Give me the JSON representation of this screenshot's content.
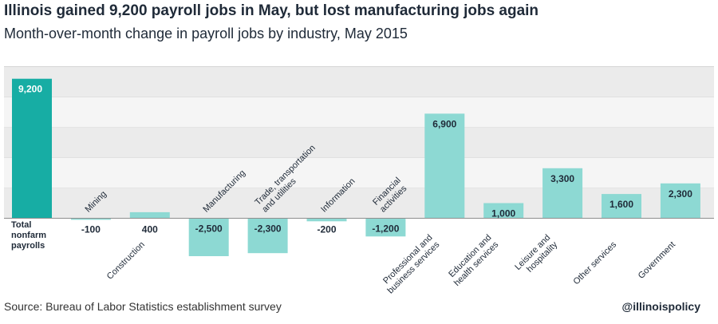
{
  "title": "Illinois gained 9,200 payroll jobs in May, but lost manufacturing jobs again",
  "subtitle": "Month-over-month change in payroll jobs by industry, May 2015",
  "source": "Source: Bureau of Labor Statistics establishment survey",
  "handle": "@illinoispolicy",
  "colors": {
    "total_bar": "#17ada4",
    "industry_bar": "#8dd9d3",
    "band_light": "#f5f5f5",
    "band_dark": "#ebebeb",
    "text": "#1f2a38"
  },
  "chart_data": {
    "type": "bar",
    "grid": true,
    "categories": [
      [
        "Total",
        "nonfarm",
        "payrolls"
      ],
      [
        "Mining"
      ],
      [
        "Construction"
      ],
      [
        "Manufacturing"
      ],
      [
        "Trade, transportation",
        "and utilities"
      ],
      [
        "Information"
      ],
      [
        "Financial",
        "activities"
      ],
      [
        "Professional and",
        "business services"
      ],
      [
        "Education and",
        "health services"
      ],
      [
        "Leisure and",
        "hospitality"
      ],
      [
        "Other services"
      ],
      [
        "Government"
      ]
    ],
    "values": [
      9200,
      -100,
      400,
      -2500,
      -2300,
      -200,
      -1200,
      6900,
      1000,
      3300,
      1600,
      2300
    ],
    "value_labels": [
      "9,200",
      "-100",
      "400",
      "-2,500",
      "-2,300",
      "-200",
      "-1,200",
      "6,900",
      "1,000",
      "3,300",
      "1,600",
      "2,300"
    ],
    "ylim": [
      -2500,
      10000
    ]
  }
}
